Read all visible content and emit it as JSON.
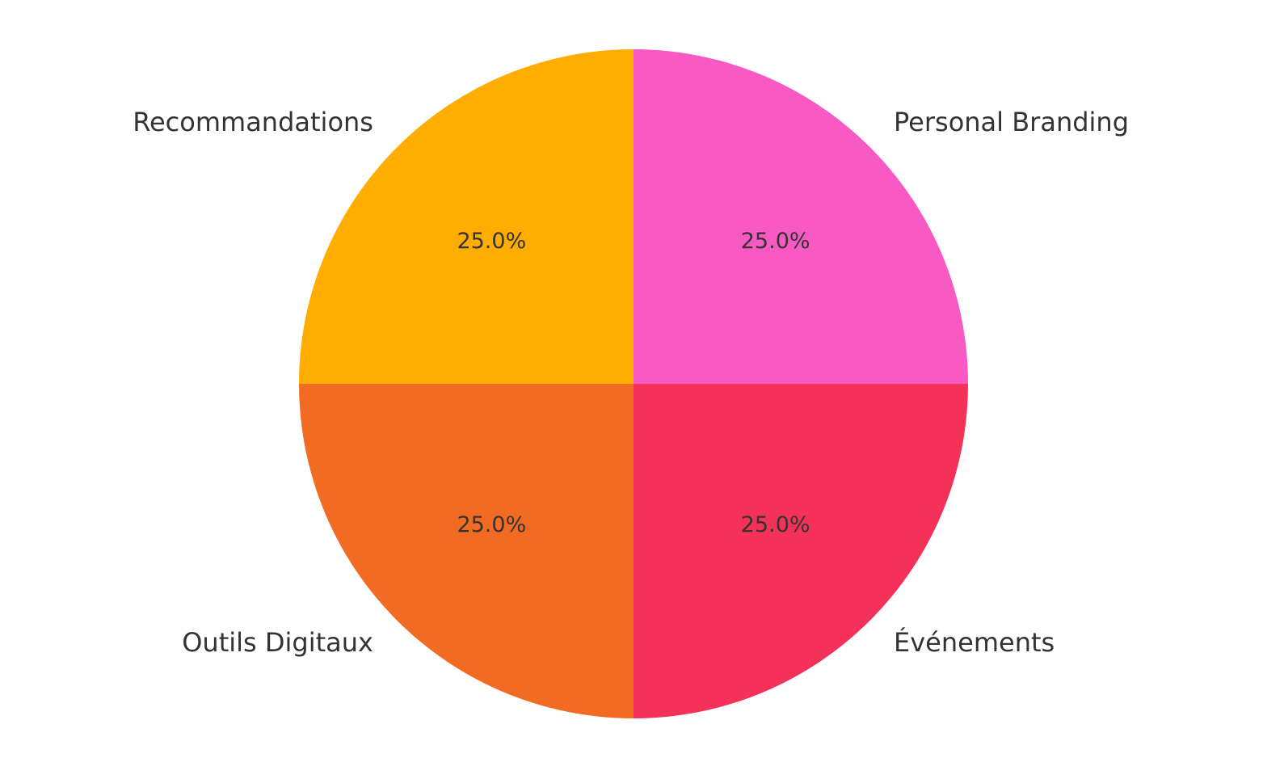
{
  "chart_data": {
    "type": "pie",
    "categories": [
      "Recommandations",
      "Outils Digitaux",
      "Événements",
      "Personal Branding"
    ],
    "values": [
      25,
      25,
      25,
      25
    ],
    "value_labels": [
      "25.0%",
      "25.0%",
      "25.0%",
      "25.0%"
    ],
    "colors": [
      "#FFAE00",
      "#F26B23",
      "#F43158",
      "#F859C2"
    ]
  }
}
